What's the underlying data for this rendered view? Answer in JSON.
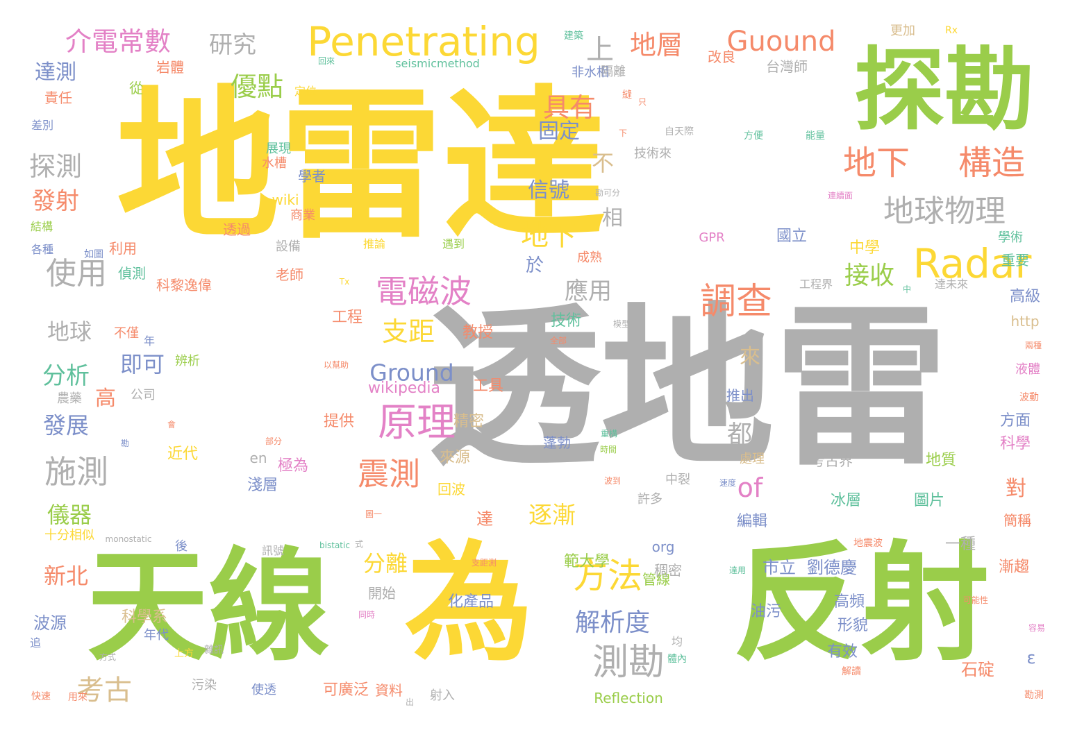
{
  "palette": {
    "yellow": "#FCD835",
    "green": "#9ACD4A",
    "gray": "#AFAFAF",
    "salmon": "#F58A6A",
    "pink": "#E381C6",
    "blue": "#7C8FC9",
    "teal": "#5FC09C",
    "tan": "#D9BE8E"
  },
  "words": [
    {
      "text": "地雷達",
      "color": "yellow"
    },
    {
      "text": "透地雷",
      "color": "gray"
    },
    {
      "text": "天線",
      "color": "green"
    },
    {
      "text": "為",
      "color": "yellow"
    },
    {
      "text": "反射",
      "color": "green"
    },
    {
      "text": "探勘",
      "color": "green"
    },
    {
      "text": "Penetrating",
      "color": "yellow"
    },
    {
      "text": "介電常數",
      "color": "pink"
    },
    {
      "text": "研究",
      "color": "gray"
    },
    {
      "text": "上",
      "color": "gray"
    },
    {
      "text": "地層",
      "color": "salmon"
    },
    {
      "text": "Guound",
      "color": "salmon"
    },
    {
      "text": "地下",
      "color": "salmon"
    },
    {
      "text": "構造",
      "color": "salmon"
    },
    {
      "text": "地球物理",
      "color": "gray"
    },
    {
      "text": "Radar",
      "color": "yellow"
    },
    {
      "text": "調查",
      "color": "salmon"
    },
    {
      "text": "電磁波",
      "color": "pink"
    },
    {
      "text": "原理",
      "color": "pink"
    },
    {
      "text": "方法",
      "color": "yellow"
    },
    {
      "text": "震測",
      "color": "salmon"
    },
    {
      "text": "測勘",
      "color": "gray"
    },
    {
      "text": "使用",
      "color": "gray"
    },
    {
      "text": "施測",
      "color": "gray"
    },
    {
      "text": "優點",
      "color": "green"
    },
    {
      "text": "具有",
      "color": "salmon"
    },
    {
      "text": "固定",
      "color": "blue"
    },
    {
      "text": "信號",
      "color": "blue"
    },
    {
      "text": "地下",
      "color": "yellow"
    },
    {
      "text": "支距",
      "color": "yellow"
    },
    {
      "text": "Ground",
      "color": "blue"
    },
    {
      "text": "逐漸",
      "color": "yellow"
    },
    {
      "text": "解析度",
      "color": "blue"
    },
    {
      "text": "應用",
      "color": "gray"
    },
    {
      "text": "接收",
      "color": "green"
    },
    {
      "text": "探測",
      "color": "gray"
    },
    {
      "text": "發射",
      "color": "salmon"
    },
    {
      "text": "達測",
      "color": "blue"
    },
    {
      "text": "地球",
      "color": "gray"
    },
    {
      "text": "分析",
      "color": "teal"
    },
    {
      "text": "發展",
      "color": "blue"
    },
    {
      "text": "儀器",
      "color": "green"
    },
    {
      "text": "考古",
      "color": "tan"
    },
    {
      "text": "即可",
      "color": "blue"
    },
    {
      "text": "分離",
      "color": "yellow"
    },
    {
      "text": "of",
      "color": "pink"
    },
    {
      "text": "都",
      "color": "gray"
    },
    {
      "text": "來",
      "color": "tan"
    },
    {
      "text": "不",
      "color": "tan"
    },
    {
      "text": "相",
      "color": "gray"
    },
    {
      "text": "於",
      "color": "blue"
    },
    {
      "text": "對",
      "color": "salmon"
    },
    {
      "text": "ε",
      "color": "blue"
    },
    {
      "text": "高",
      "color": "salmon"
    },
    {
      "text": "新北",
      "color": "salmon"
    },
    {
      "text": "市立",
      "color": "blue"
    },
    {
      "text": "劉德慶",
      "color": "blue"
    },
    {
      "text": "範大學",
      "color": "green"
    },
    {
      "text": "石碇",
      "color": "salmon"
    },
    {
      "text": "高頻",
      "color": "blue"
    },
    {
      "text": "形貌",
      "color": "blue"
    },
    {
      "text": "有效",
      "color": "blue"
    },
    {
      "text": "油污",
      "color": "blue"
    },
    {
      "text": "波源",
      "color": "blue"
    },
    {
      "text": "科學系",
      "color": "tan"
    },
    {
      "text": "年代",
      "color": "blue"
    },
    {
      "text": "可廣泛",
      "color": "salmon"
    },
    {
      "text": "資料",
      "color": "salmon"
    },
    {
      "text": "使透",
      "color": "blue"
    },
    {
      "text": "化產品",
      "color": "blue"
    },
    {
      "text": "開始",
      "color": "gray"
    },
    {
      "text": "管線",
      "color": "green"
    },
    {
      "text": "稠密",
      "color": "gray"
    },
    {
      "text": "org",
      "color": "blue"
    },
    {
      "text": "一種",
      "color": "gray"
    },
    {
      "text": "編輯",
      "color": "blue"
    },
    {
      "text": "冰層",
      "color": "teal"
    },
    {
      "text": "圖片",
      "color": "teal"
    },
    {
      "text": "地質",
      "color": "green"
    },
    {
      "text": "考古界",
      "color": "gray"
    },
    {
      "text": "處理",
      "color": "tan"
    },
    {
      "text": "達",
      "color": "salmon"
    },
    {
      "text": "技術",
      "color": "teal"
    },
    {
      "text": "工程",
      "color": "salmon"
    },
    {
      "text": "教授",
      "color": "salmon"
    },
    {
      "text": "工具",
      "color": "salmon"
    },
    {
      "text": "wikipedia",
      "color": "pink"
    },
    {
      "text": "提供",
      "color": "salmon"
    },
    {
      "text": "精密",
      "color": "tan"
    },
    {
      "text": "來源",
      "color": "tan"
    },
    {
      "text": "近代",
      "color": "yellow"
    },
    {
      "text": "極為",
      "color": "pink"
    },
    {
      "text": "淺層",
      "color": "blue"
    },
    {
      "text": "回波",
      "color": "yellow"
    },
    {
      "text": "蓬勃",
      "color": "blue"
    },
    {
      "text": "中裂",
      "color": "gray"
    },
    {
      "text": "許多",
      "color": "gray"
    },
    {
      "text": "en",
      "color": "gray"
    },
    {
      "text": "推出",
      "color": "blue"
    },
    {
      "text": "方面",
      "color": "blue"
    },
    {
      "text": "科學",
      "color": "pink"
    },
    {
      "text": "簡稱",
      "color": "salmon"
    },
    {
      "text": "漸趨",
      "color": "salmon"
    },
    {
      "text": "高級",
      "color": "blue"
    },
    {
      "text": "http",
      "color": "tan"
    },
    {
      "text": "液體",
      "color": "pink"
    },
    {
      "text": "波動",
      "color": "salmon"
    },
    {
      "text": "兩種",
      "color": "salmon"
    },
    {
      "text": "重要",
      "color": "teal"
    },
    {
      "text": "學術",
      "color": "teal"
    },
    {
      "text": "中學",
      "color": "yellow"
    },
    {
      "text": "國立",
      "color": "blue"
    },
    {
      "text": "GPR",
      "color": "pink"
    },
    {
      "text": "利用",
      "color": "salmon"
    },
    {
      "text": "偵測",
      "color": "teal"
    },
    {
      "text": "科黎逸偉",
      "color": "salmon"
    },
    {
      "text": "老師",
      "color": "salmon"
    },
    {
      "text": "設備",
      "color": "gray"
    },
    {
      "text": "商業",
      "color": "salmon"
    },
    {
      "text": "wiki",
      "color": "yellow"
    },
    {
      "text": "學者",
      "color": "blue"
    },
    {
      "text": "展現",
      "color": "teal"
    },
    {
      "text": "水槽",
      "color": "salmon"
    },
    {
      "text": "技術來",
      "color": "gray"
    },
    {
      "text": "自天際",
      "color": "gray"
    },
    {
      "text": "方便",
      "color": "teal"
    },
    {
      "text": "能量",
      "color": "teal"
    },
    {
      "text": "勘可分",
      "color": "gray"
    },
    {
      "text": "連續面",
      "color": "pink"
    },
    {
      "text": "工程界",
      "color": "gray"
    },
    {
      "text": "達未來",
      "color": "gray"
    },
    {
      "text": "遇到",
      "color": "green"
    },
    {
      "text": "推論",
      "color": "yellow"
    },
    {
      "text": "成熟",
      "color": "salmon"
    },
    {
      "text": "非水相",
      "color": "blue"
    },
    {
      "text": "台灣師",
      "color": "gray"
    },
    {
      "text": "改良",
      "color": "salmon"
    },
    {
      "text": "更加",
      "color": "tan"
    },
    {
      "text": "Rx",
      "color": "yellow"
    },
    {
      "text": "seismicmethod",
      "color": "teal"
    },
    {
      "text": "回來",
      "color": "teal"
    },
    {
      "text": "建築",
      "color": "teal"
    },
    {
      "text": "岩體",
      "color": "salmon"
    },
    {
      "text": "從",
      "color": "green"
    },
    {
      "text": "責任",
      "color": "salmon"
    },
    {
      "text": "定位",
      "color": "yellow"
    },
    {
      "text": "差別",
      "color": "blue"
    },
    {
      "text": "結構",
      "color": "green"
    },
    {
      "text": "各種",
      "color": "blue"
    },
    {
      "text": "如圖",
      "color": "blue"
    },
    {
      "text": "透過",
      "color": "salmon"
    },
    {
      "text": "不僅",
      "color": "salmon"
    },
    {
      "text": "年",
      "color": "blue"
    },
    {
      "text": "辨析",
      "color": "green"
    },
    {
      "text": "公司",
      "color": "gray"
    },
    {
      "text": "農藥",
      "color": "gray"
    },
    {
      "text": "十分相似",
      "color": "yellow"
    },
    {
      "text": "monostatic",
      "color": "gray"
    },
    {
      "text": "bistatic",
      "color": "teal"
    },
    {
      "text": "後",
      "color": "blue"
    },
    {
      "text": "追",
      "color": "blue"
    },
    {
      "text": "快速",
      "color": "salmon"
    },
    {
      "text": "用來",
      "color": "salmon"
    },
    {
      "text": "方式",
      "color": "gray"
    },
    {
      "text": "上方",
      "color": "yellow"
    },
    {
      "text": "污染",
      "color": "gray"
    },
    {
      "text": "射入",
      "color": "gray"
    },
    {
      "text": "Reflection",
      "color": "green"
    },
    {
      "text": "解讀",
      "color": "salmon"
    },
    {
      "text": "容易",
      "color": "pink"
    },
    {
      "text": "勘測",
      "color": "salmon"
    },
    {
      "text": "可能性",
      "color": "salmon"
    },
    {
      "text": "地震波",
      "color": "salmon"
    },
    {
      "text": "達用",
      "color": "teal"
    },
    {
      "text": "支距測",
      "color": "salmon"
    },
    {
      "text": "同時",
      "color": "pink"
    },
    {
      "text": "訊號",
      "color": "gray"
    },
    {
      "text": "雜訊",
      "color": "gray"
    },
    {
      "text": "式",
      "color": "gray"
    },
    {
      "text": "圖一",
      "color": "salmon"
    },
    {
      "text": "均",
      "color": "gray"
    },
    {
      "text": "體內",
      "color": "teal"
    },
    {
      "text": "重構",
      "color": "teal"
    },
    {
      "text": "時間",
      "color": "green"
    },
    {
      "text": "波到",
      "color": "salmon"
    },
    {
      "text": "速度",
      "color": "blue"
    },
    {
      "text": "部分",
      "color": "salmon"
    },
    {
      "text": "模型",
      "color": "gray"
    },
    {
      "text": "全部",
      "color": "salmon"
    },
    {
      "text": "以幫助",
      "color": "salmon"
    },
    {
      "text": "會",
      "color": "salmon"
    },
    {
      "text": "勘",
      "color": "blue"
    },
    {
      "text": "中",
      "color": "teal"
    },
    {
      "text": "Tx",
      "color": "yellow"
    },
    {
      "text": "下",
      "color": "salmon"
    },
    {
      "text": "隔離",
      "color": "gray"
    },
    {
      "text": "縫",
      "color": "salmon"
    },
    {
      "text": "只",
      "color": "salmon"
    },
    {
      "text": "出",
      "color": "gray"
    },
    {
      "text": "_",
      "color": "yellow"
    }
  ]
}
